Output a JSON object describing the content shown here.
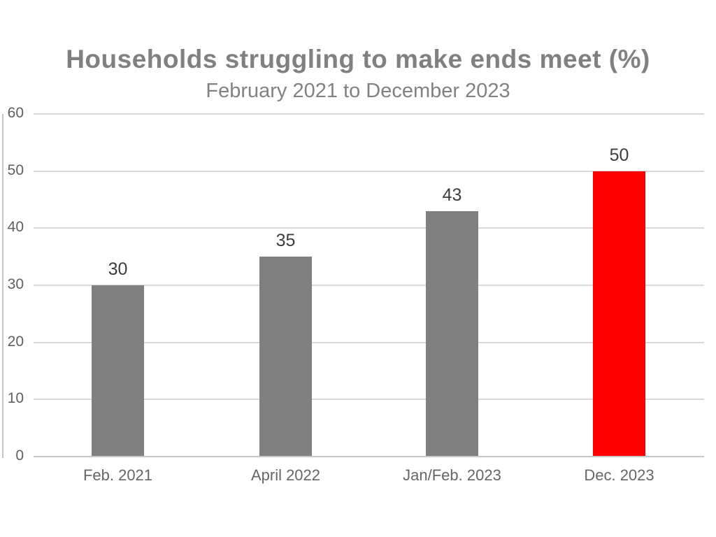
{
  "chart_data": {
    "type": "bar",
    "title": "Households struggling to make ends meet (%)",
    "subtitle": "February 2021 to December 2023",
    "categories": [
      "Feb. 2021",
      "April 2022",
      "Jan/Feb. 2023",
      "Dec. 2023"
    ],
    "values": [
      30,
      35,
      43,
      50
    ],
    "data_labels": [
      "30",
      "35",
      "43",
      "50"
    ],
    "bar_colors": [
      "#808080",
      "#808080",
      "#808080",
      "#ff0000"
    ],
    "y_ticks": [
      0,
      10,
      20,
      30,
      40,
      50,
      60
    ],
    "ylim": [
      0,
      60
    ],
    "xlabel": "",
    "ylabel": "",
    "grid": true,
    "legend": "none",
    "colors": {
      "title_text": "#808080",
      "subtitle_text": "#828282",
      "axis_text": "#5f5f5f",
      "data_label_text": "#3d3d3d",
      "gridline": "#d9d9d9",
      "baseline": "#c8c8c8",
      "axis_line": "#c4c4c4",
      "default_bar": "#808080",
      "highlight_bar": "#ff0000"
    }
  }
}
